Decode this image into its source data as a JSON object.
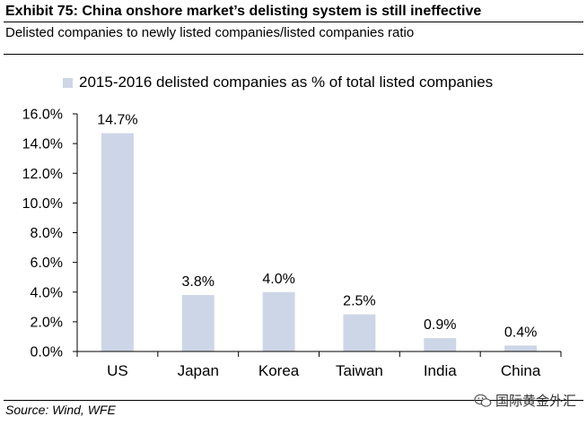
{
  "header": {
    "title": "Exhibit 75: China onshore market’s delisting system is still ineffective",
    "subtitle": "Delisted companies to newly listed companies/listed companies ratio"
  },
  "footer": {
    "source": "Source: Wind, WFE",
    "watermark": "国际黄金外汇"
  },
  "chart_data": {
    "type": "bar",
    "categories": [
      "US",
      "Japan",
      "Korea",
      "Taiwan",
      "India",
      "China"
    ],
    "series": [
      {
        "name": "2015-2016 delisted companies as % of total listed companies",
        "values": [
          14.7,
          3.8,
          4.0,
          2.5,
          0.9,
          0.4
        ],
        "data_labels": [
          "14.7%",
          "3.8%",
          "4.0%",
          "2.5%",
          "0.9%",
          "0.4%"
        ]
      }
    ],
    "ylim": [
      0,
      16
    ],
    "yticks": [
      0,
      2,
      4,
      6,
      8,
      10,
      12,
      14,
      16
    ],
    "ytick_labels": [
      "0.0%",
      "2.0%",
      "4.0%",
      "6.0%",
      "8.0%",
      "10.0%",
      "12.0%",
      "14.0%",
      "16.0%"
    ],
    "grid": false,
    "legend_position": "top",
    "colors": {
      "bar": "#cdd6e6",
      "axis": "#000000"
    }
  }
}
